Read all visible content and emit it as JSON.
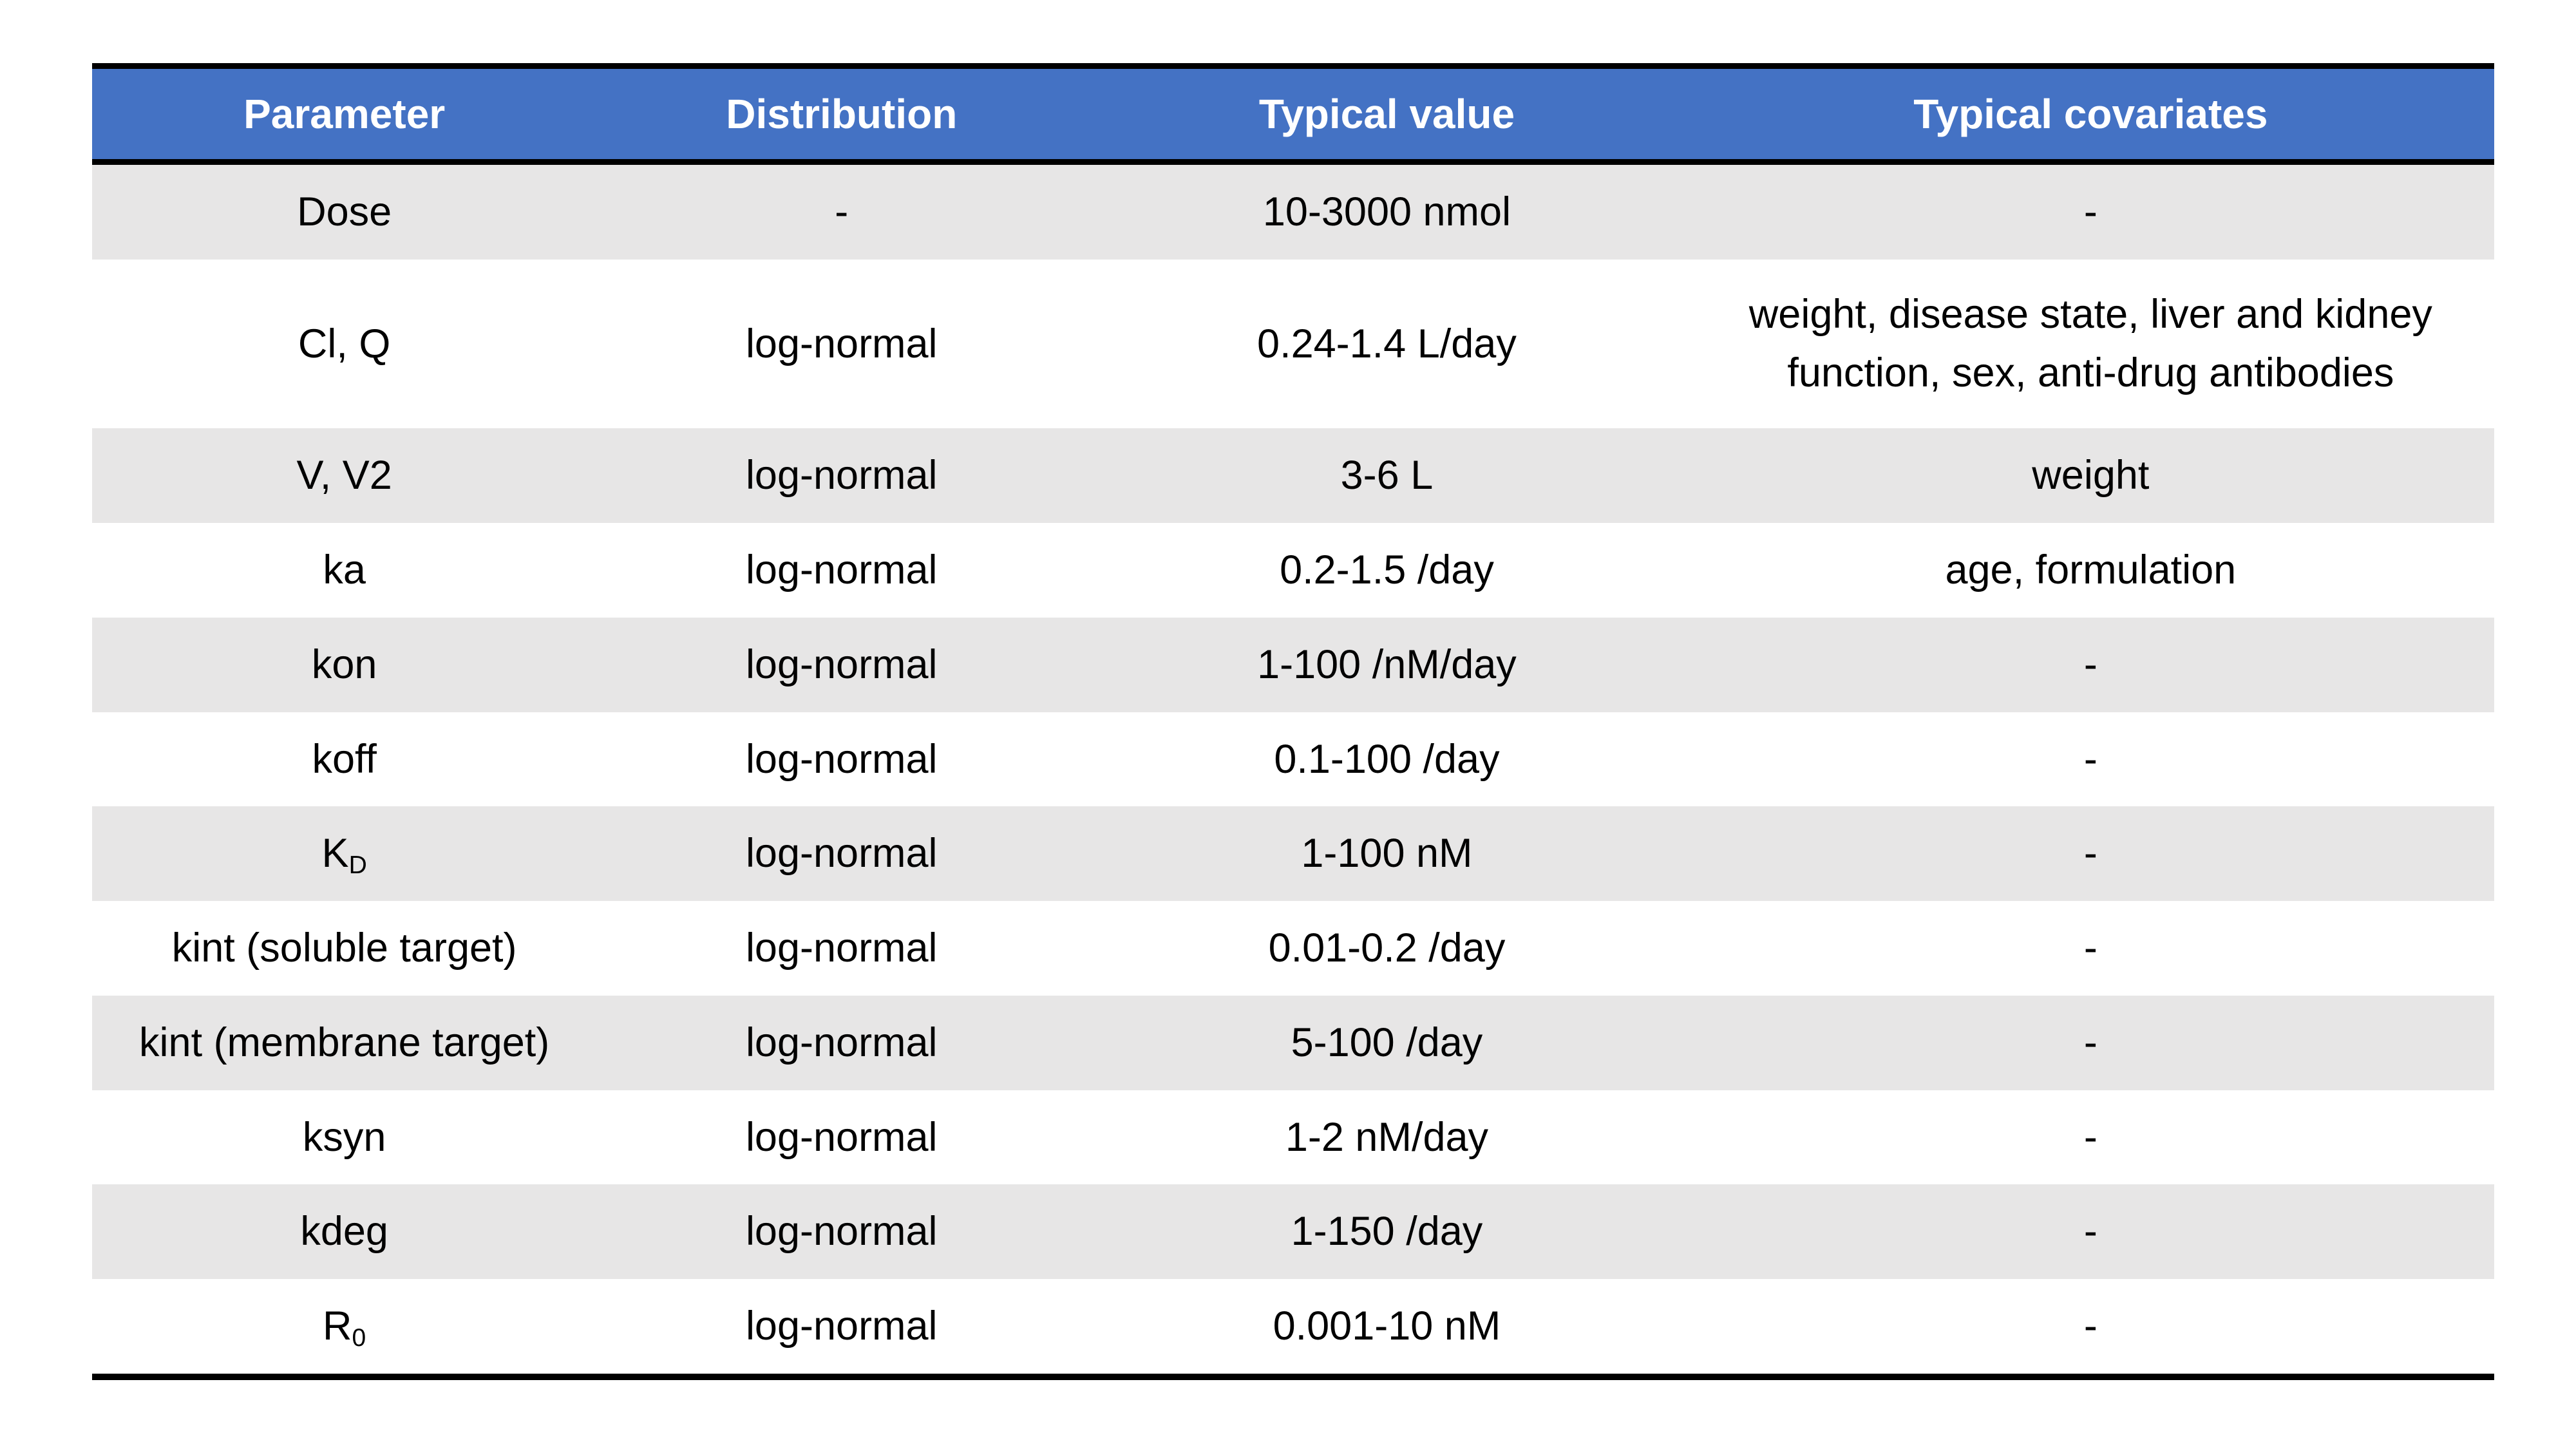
{
  "chart_data": {
    "type": "table",
    "title": "",
    "columns": [
      "Parameter",
      "Distribution",
      "Typical value",
      "Typical covariates"
    ],
    "rows": [
      {
        "parameter_base": "Dose",
        "parameter_sub": "",
        "distribution": "-",
        "typical_value": "10-3000 nmol",
        "typical_covariates": "-"
      },
      {
        "parameter_base": "Cl, Q",
        "parameter_sub": "",
        "distribution": "log-normal",
        "typical_value": "0.24-1.4 L/day",
        "typical_covariates": "weight, disease state, liver and kidney\nfunction, sex, anti-drug antibodies"
      },
      {
        "parameter_base": "V, V2",
        "parameter_sub": "",
        "distribution": "log-normal",
        "typical_value": "3-6 L",
        "typical_covariates": "weight"
      },
      {
        "parameter_base": "ka",
        "parameter_sub": "",
        "distribution": "log-normal",
        "typical_value": "0.2-1.5 /day",
        "typical_covariates": "age, formulation"
      },
      {
        "parameter_base": "kon",
        "parameter_sub": "",
        "distribution": "log-normal",
        "typical_value": "1-100 /nM/day",
        "typical_covariates": "-"
      },
      {
        "parameter_base": "koff",
        "parameter_sub": "",
        "distribution": "log-normal",
        "typical_value": "0.1-100 /day",
        "typical_covariates": "-"
      },
      {
        "parameter_base": "K",
        "parameter_sub": "D",
        "distribution": "log-normal",
        "typical_value": "1-100 nM",
        "typical_covariates": "-"
      },
      {
        "parameter_base": "kint (soluble target)",
        "parameter_sub": "",
        "distribution": "log-normal",
        "typical_value": "0.01-0.2 /day",
        "typical_covariates": "-"
      },
      {
        "parameter_base": "kint (membrane target)",
        "parameter_sub": "",
        "distribution": "log-normal",
        "typical_value": "5-100 /day",
        "typical_covariates": "-"
      },
      {
        "parameter_base": "ksyn",
        "parameter_sub": "",
        "distribution": "log-normal",
        "typical_value": "1-2 nM/day",
        "typical_covariates": "-"
      },
      {
        "parameter_base": "kdeg",
        "parameter_sub": "",
        "distribution": "log-normal",
        "typical_value": "1-150 /day",
        "typical_covariates": "-"
      },
      {
        "parameter_base": "R",
        "parameter_sub": "0",
        "distribution": "log-normal",
        "typical_value": "0.001-10 nM",
        "typical_covariates": "-"
      }
    ],
    "layout": {
      "legend": "none",
      "grid": "off",
      "striping": "alternating rows, first body row shaded"
    },
    "colors": {
      "header_bg": "#4472C4",
      "header_text": "#FFFFFF",
      "row_alt_bg": "#E7E6E6",
      "row_bg": "#FFFFFF",
      "border": "#000000",
      "body_text": "#000000"
    }
  }
}
